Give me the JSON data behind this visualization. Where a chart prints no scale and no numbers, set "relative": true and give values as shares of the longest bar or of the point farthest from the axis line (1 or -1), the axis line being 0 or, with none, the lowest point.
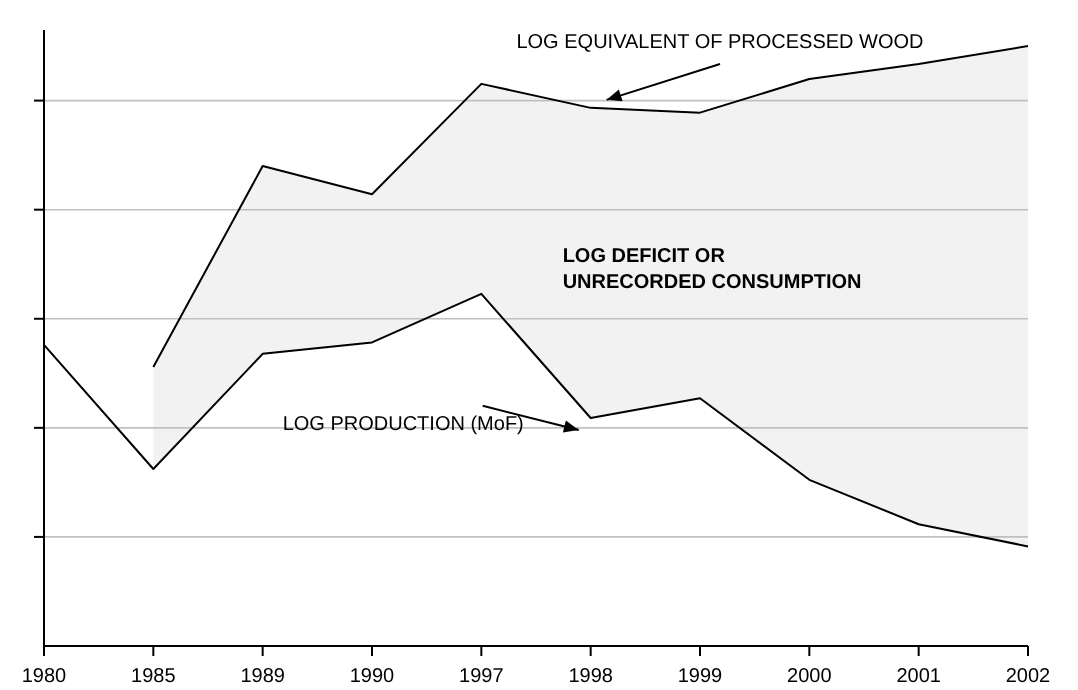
{
  "chart_data": {
    "type": "line",
    "relative": true,
    "grid": "y",
    "categories": [
      "1980",
      "1985",
      "1989",
      "1990",
      "1997",
      "1998",
      "1999",
      "2000",
      "2001",
      "2002"
    ],
    "series": [
      {
        "name": "LOG EQUIVALENT OF PROCESSED WOOD",
        "color": "#000000",
        "values": [
          null,
          0.465,
          0.8,
          0.753,
          0.937,
          0.897,
          0.889,
          0.945,
          0.97,
          1
        ],
        "lower": [
          null,
          0.295,
          0.487,
          0.506,
          0.587,
          0.38,
          0.413,
          0.277,
          0.203,
          0.166
        ],
        "upper": [
          null,
          0.465,
          0.8,
          0.753,
          0.937,
          0.897,
          0.889,
          0.945,
          0.97,
          1
        ]
      },
      {
        "name": "LOG PRODUCTION (MoF)",
        "color": "#000000",
        "values": [
          0.502,
          0.295,
          0.487,
          0.506,
          0.587,
          0.38,
          0.413,
          0.277,
          0.203,
          0.166
        ]
      }
    ],
    "annotations": [
      "LOG DEFICIT OR\nUNRECORDED CONSUMPTION"
    ]
  }
}
